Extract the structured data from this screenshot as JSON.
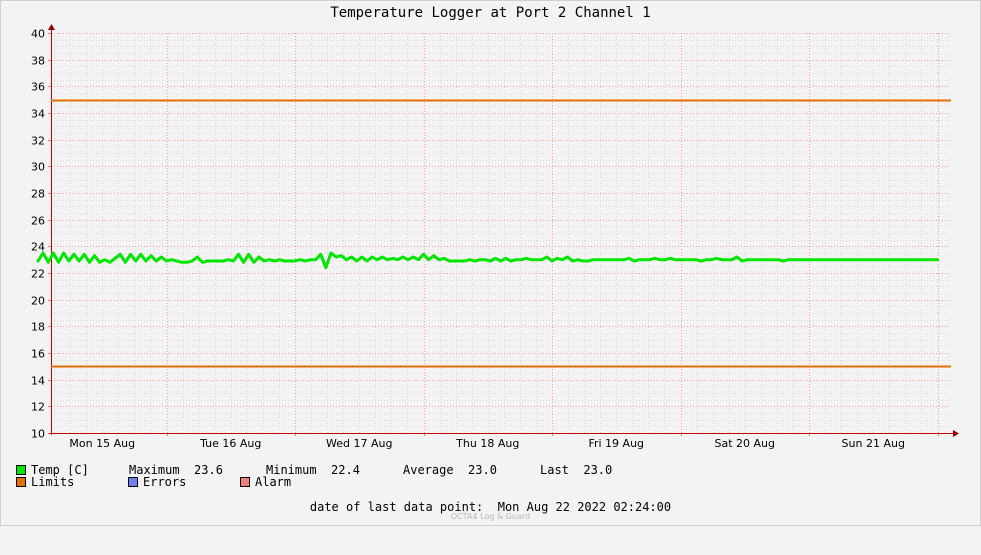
{
  "chart_data": {
    "type": "line",
    "title": "Temperature Logger at Port 2 Channel 1",
    "xlabel": "",
    "ylabel": "",
    "ylim": [
      10,
      40
    ],
    "y_ticks": [
      10,
      12,
      14,
      16,
      18,
      20,
      22,
      24,
      26,
      28,
      30,
      32,
      34,
      36,
      38,
      40
    ],
    "x_ticks": [
      "Mon 15 Aug",
      "Tue 16 Aug",
      "Wed 17 Aug",
      "Thu 18 Aug",
      "Fri 19 Aug",
      "Sat 20 Aug",
      "Sun 21 Aug"
    ],
    "x_range_days": [
      0,
      7
    ],
    "grid": true,
    "series": [
      {
        "name": "Temp [C]",
        "color": "#00e600",
        "x_days": [
          0.0,
          0.04,
          0.08,
          0.12,
          0.16,
          0.2,
          0.24,
          0.28,
          0.32,
          0.36,
          0.4,
          0.44,
          0.48,
          0.52,
          0.56,
          0.6,
          0.64,
          0.68,
          0.72,
          0.76,
          0.8,
          0.84,
          0.88,
          0.92,
          0.96,
          1.0,
          1.04,
          1.08,
          1.12,
          1.16,
          1.2,
          1.24,
          1.28,
          1.32,
          1.36,
          1.4,
          1.44,
          1.48,
          1.52,
          1.56,
          1.6,
          1.64,
          1.68,
          1.72,
          1.76,
          1.8,
          1.84,
          1.88,
          1.92,
          1.96,
          2.0,
          2.04,
          2.08,
          2.12,
          2.16,
          2.2,
          2.24,
          2.28,
          2.32,
          2.36,
          2.4,
          2.44,
          2.48,
          2.52,
          2.56,
          2.6,
          2.64,
          2.68,
          2.72,
          2.76,
          2.8,
          2.84,
          2.88,
          2.92,
          2.96,
          3.0,
          3.04,
          3.08,
          3.12,
          3.16,
          3.2,
          3.24,
          3.28,
          3.32,
          3.36,
          3.4,
          3.44,
          3.48,
          3.52,
          3.56,
          3.6,
          3.64,
          3.68,
          3.72,
          3.76,
          3.8,
          3.84,
          3.88,
          3.92,
          3.96,
          4.0,
          4.04,
          4.08,
          4.12,
          4.16,
          4.2,
          4.24,
          4.28,
          4.32,
          4.36,
          4.4,
          4.44,
          4.48,
          4.52,
          4.56,
          4.6,
          4.64,
          4.68,
          4.72,
          4.76,
          4.8,
          4.84,
          4.88,
          4.92,
          4.96,
          5.0,
          5.04,
          5.08,
          5.12,
          5.16,
          5.2,
          5.24,
          5.28,
          5.32,
          5.36,
          5.4,
          5.44,
          5.48,
          5.52,
          5.56,
          5.6,
          5.64,
          5.68,
          5.72,
          5.76,
          5.8,
          5.84,
          5.88,
          5.92,
          5.96,
          6.0,
          6.04,
          6.08,
          6.12,
          6.16,
          6.2,
          6.24,
          6.28,
          6.32,
          6.36,
          6.4,
          6.44,
          6.48,
          6.52,
          6.56,
          6.6,
          6.64,
          6.68,
          6.72,
          6.76,
          6.8,
          6.84,
          6.88,
          6.92,
          6.96,
          7.0
        ],
        "values": [
          22.9,
          23.5,
          22.8,
          23.5,
          22.8,
          23.5,
          22.9,
          23.4,
          22.9,
          23.4,
          22.8,
          23.3,
          22.8,
          23.0,
          22.8,
          23.1,
          23.4,
          22.8,
          23.4,
          22.9,
          23.4,
          22.9,
          23.3,
          22.9,
          23.2,
          22.9,
          23.0,
          22.9,
          22.8,
          22.8,
          22.9,
          23.2,
          22.8,
          22.9,
          22.9,
          22.9,
          22.9,
          23.0,
          22.9,
          23.4,
          22.8,
          23.4,
          22.8,
          23.2,
          22.9,
          23.0,
          22.9,
          23.0,
          22.9,
          22.9,
          22.9,
          23.0,
          22.9,
          23.0,
          23.0,
          23.4,
          22.4,
          23.5,
          23.2,
          23.3,
          23.0,
          23.2,
          22.9,
          23.2,
          22.9,
          23.2,
          23.0,
          23.2,
          23.0,
          23.1,
          23.0,
          23.2,
          23.0,
          23.2,
          23.0,
          23.4,
          23.0,
          23.3,
          23.0,
          23.1,
          22.9,
          22.9,
          22.9,
          22.9,
          23.0,
          22.9,
          23.0,
          23.0,
          22.9,
          23.1,
          22.9,
          23.1,
          22.9,
          23.0,
          23.0,
          23.1,
          23.0,
          23.0,
          23.0,
          23.2,
          22.9,
          23.1,
          23.0,
          23.2,
          22.9,
          23.0,
          22.9,
          22.9,
          23.0,
          23.0,
          23.0,
          23.0,
          23.0,
          23.0,
          23.0,
          23.1,
          22.9,
          23.0,
          23.0,
          23.0,
          23.1,
          23.0,
          23.0,
          23.1,
          23.0,
          23.0,
          23.0,
          23.0,
          23.0,
          22.9,
          23.0,
          23.0,
          23.1,
          23.0,
          23.0,
          23.0,
          23.2,
          22.9,
          23.0,
          23.0,
          23.0,
          23.0,
          23.0,
          23.0,
          23.0,
          22.9,
          23.0,
          23.0,
          23.0,
          23.0,
          23.0,
          23.0,
          23.0,
          23.0,
          23.0,
          23.0,
          23.0,
          23.0,
          23.0,
          23.0,
          23.0,
          23.0,
          23.0,
          23.0,
          23.0,
          23.0,
          23.0,
          23.0,
          23.0,
          23.0,
          23.0,
          23.0,
          23.0,
          23.0,
          23.0,
          23.0
        ]
      }
    ],
    "limits": {
      "name": "Limits",
      "upper": 35,
      "lower": 15,
      "color": "#e66e00"
    }
  },
  "legend": {
    "temp": {
      "label": "Temp [C]",
      "color": "#00e600"
    },
    "limits": {
      "label": "Limits",
      "color": "#e66e00"
    },
    "errors": {
      "label": "Errors",
      "color": "#7080f0"
    },
    "alarm": {
      "label": "Alarm",
      "color": "#f08080"
    },
    "stats": {
      "max_label": "Maximum",
      "max_value": "23.6",
      "min_label": "Minimum",
      "min_value": "22.4",
      "avg_label": "Average",
      "avg_value": "23.0",
      "last_label": "Last",
      "last_value": "23.0"
    }
  },
  "footer": {
    "label": "date of last data point:",
    "value": "Mon Aug 22 2022 02:24:00"
  },
  "watermark": "OCTA4 Log & Guard"
}
